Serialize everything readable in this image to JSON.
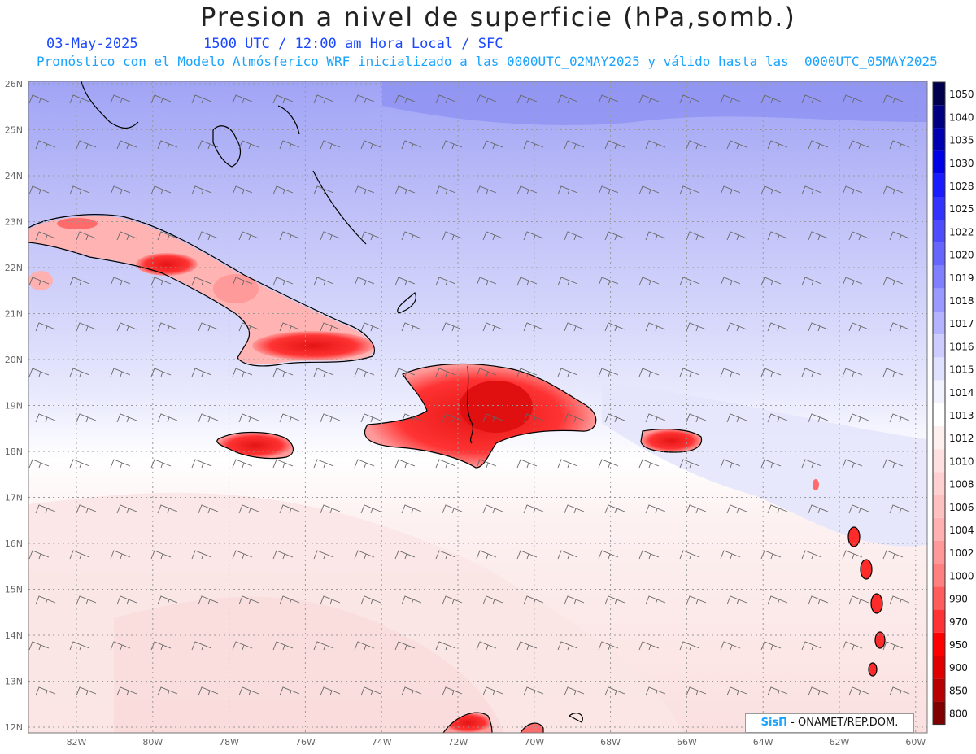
{
  "title": "Presion a nivel de superficie (hPa,somb.)",
  "date": "03-May-2025",
  "time_info": "1500 UTC / 12:00 am Hora Local / SFC",
  "forecast_info": "Pronóstico con el Modelo Atmósferico WRF inicializado a las 0000UTC_02MAY2025 y válido hasta las  0000UTC_05MAY2025",
  "logo": {
    "brand": "SisΠ",
    "text": " - ONAMET/REP.DOM."
  },
  "lat_labels": [
    "26N",
    "25N",
    "24N",
    "23N",
    "22N",
    "21N",
    "20N",
    "19N",
    "18N",
    "17N",
    "16N",
    "15N",
    "14N",
    "13N",
    "12N"
  ],
  "lon_labels": [
    "82W",
    "80W",
    "78W",
    "76W",
    "74W",
    "72W",
    "70W",
    "68W",
    "66W",
    "64W",
    "62W",
    "60W"
  ],
  "colorbar": {
    "labels": [
      "1050",
      "1040",
      "1035",
      "1030",
      "1028",
      "1025",
      "1022",
      "1020",
      "1019",
      "1018",
      "1017",
      "1016",
      "1015",
      "1014",
      "1013",
      "1012",
      "1010",
      "1008",
      "1006",
      "1004",
      "1002",
      "1000",
      "990",
      "970",
      "950",
      "900",
      "850",
      "800"
    ],
    "colors": [
      "#00004d",
      "#000080",
      "#0000b3",
      "#0000e6",
      "#1a1aff",
      "#3333ff",
      "#4d4dff",
      "#6666ff",
      "#8080ff",
      "#9999ff",
      "#b3b3ff",
      "#ccccff",
      "#e0e0ff",
      "#f2f2ff",
      "#ffffff",
      "#fff0f0",
      "#ffe0e0",
      "#ffd0d0",
      "#ffc0c0",
      "#ffb0b0",
      "#ff9999",
      "#ff8080",
      "#ff5c5c",
      "#ff3333",
      "#ff0000",
      "#e00000",
      "#b80000",
      "#800000"
    ]
  }
}
